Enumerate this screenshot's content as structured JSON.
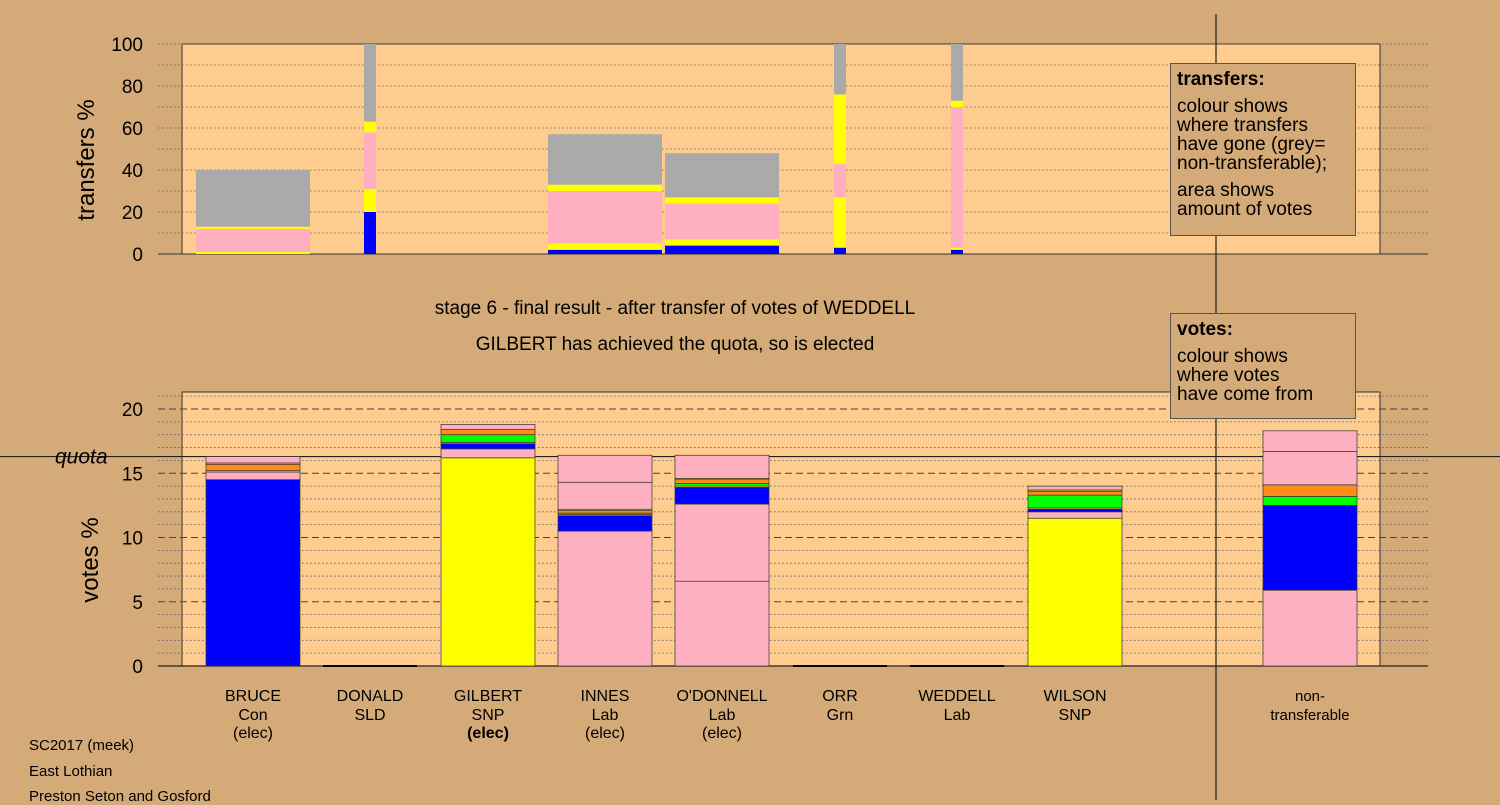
{
  "colors": {
    "background": "#d4aa78",
    "panel": "#ffcc90",
    "Con": "#0000ff",
    "SNP": "#ffff00",
    "Lab": "#ffb0c0",
    "SLD": "#ff8c1a",
    "Grn": "#00ff00",
    "nontransferable": "#aaaaaa"
  },
  "titles": {
    "stage": "stage 6 - final result - after transfer of votes of WEDDELL",
    "elected": "GILBERT has achieved the quota, so is elected"
  },
  "legend_transfers": {
    "heading": "transfers:",
    "lines1": [
      "colour shows",
      "where transfers",
      "have gone (grey=",
      "non-transferable);"
    ],
    "lines2": [
      "area shows",
      "amount of votes"
    ]
  },
  "legend_votes": {
    "heading": "votes:",
    "lines": [
      "colour shows",
      "where votes",
      "have come from"
    ]
  },
  "footer": [
    "SC2017 (meek)",
    "East Lothian",
    "Preston Seton and Gosford"
  ],
  "chart_data": [
    {
      "type": "bar",
      "name": "transfers",
      "ylabel": "transfers %",
      "ylim": [
        0,
        100
      ],
      "yticks": [
        0,
        20,
        40,
        60,
        80,
        100
      ],
      "categories": [
        "BRUCE",
        "DONALD",
        "GILBERT",
        "INNES",
        "O'DONNELL",
        "ORR",
        "WEDDELL",
        "WILSON"
      ],
      "bars": [
        {
          "candidate": "BRUCE",
          "width": "wide",
          "segments": [
            {
              "party": "SNP",
              "from": 0,
              "to": 1
            },
            {
              "party": "Lab",
              "from": 1,
              "to": 12
            },
            {
              "party": "SNP",
              "from": 12,
              "to": 13
            },
            {
              "party": "nontransferable",
              "from": 13,
              "to": 40
            }
          ]
        },
        {
          "candidate": "DONALD",
          "width": "narrow",
          "segments": [
            {
              "party": "Con",
              "from": 0,
              "to": 20
            },
            {
              "party": "SNP",
              "from": 20,
              "to": 31
            },
            {
              "party": "Lab",
              "from": 31,
              "to": 58
            },
            {
              "party": "SNP",
              "from": 58,
              "to": 63
            },
            {
              "party": "nontransferable",
              "from": 63,
              "to": 100
            }
          ]
        },
        {
          "candidate": "INNES",
          "width": "wide",
          "segments": [
            {
              "party": "Con",
              "from": 0,
              "to": 2
            },
            {
              "party": "SNP",
              "from": 2,
              "to": 5
            },
            {
              "party": "Lab",
              "from": 5,
              "to": 30
            },
            {
              "party": "SNP",
              "from": 30,
              "to": 33
            },
            {
              "party": "nontransferable",
              "from": 33,
              "to": 57
            }
          ]
        },
        {
          "candidate": "O'DONNELL",
          "width": "wide",
          "segments": [
            {
              "party": "Con",
              "from": 0,
              "to": 4
            },
            {
              "party": "SNP",
              "from": 4,
              "to": 7
            },
            {
              "party": "Lab",
              "from": 7,
              "to": 24
            },
            {
              "party": "SNP",
              "from": 24,
              "to": 27
            },
            {
              "party": "nontransferable",
              "from": 27,
              "to": 48
            }
          ]
        },
        {
          "candidate": "ORR",
          "width": "narrow",
          "segments": [
            {
              "party": "Con",
              "from": 0,
              "to": 3
            },
            {
              "party": "SNP",
              "from": 3,
              "to": 27
            },
            {
              "party": "Lab",
              "from": 27,
              "to": 43
            },
            {
              "party": "SNP",
              "from": 43,
              "to": 76
            },
            {
              "party": "nontransferable",
              "from": 76,
              "to": 100
            }
          ]
        },
        {
          "candidate": "WEDDELL",
          "width": "narrow",
          "segments": [
            {
              "party": "Con",
              "from": 0,
              "to": 2
            },
            {
              "party": "SNP",
              "from": 2,
              "to": 3
            },
            {
              "party": "Lab",
              "from": 3,
              "to": 70
            },
            {
              "party": "SNP",
              "from": 70,
              "to": 73
            },
            {
              "party": "nontransferable",
              "from": 73,
              "to": 100
            }
          ]
        }
      ]
    },
    {
      "type": "bar",
      "name": "votes",
      "ylabel": "votes %",
      "ylim": [
        0,
        21
      ],
      "yticks": [
        0,
        5,
        10,
        15,
        20
      ],
      "quota": 16.3,
      "quota_label": "quota",
      "categories": [
        "BRUCE",
        "DONALD",
        "GILBERT",
        "INNES",
        "O'DONNELL",
        "ORR",
        "WEDDELL",
        "WILSON",
        "non-transferable"
      ],
      "labels": [
        {
          "name": "BRUCE",
          "party": "Con",
          "status": "(elec)",
          "bold": false
        },
        {
          "name": "DONALD",
          "party": "SLD",
          "status": "",
          "bold": false
        },
        {
          "name": "GILBERT",
          "party": "SNP",
          "status": "(elec)",
          "bold": true
        },
        {
          "name": "INNES",
          "party": "Lab",
          "status": "(elec)",
          "bold": false
        },
        {
          "name": "O'DONNELL",
          "party": "Lab",
          "status": "(elec)",
          "bold": false
        },
        {
          "name": "ORR",
          "party": "Grn",
          "status": "",
          "bold": false
        },
        {
          "name": "WEDDELL",
          "party": "Lab",
          "status": "",
          "bold": false
        },
        {
          "name": "WILSON",
          "party": "SNP",
          "status": "",
          "bold": false
        },
        {
          "name": "non-",
          "party": "transferable",
          "status": "",
          "bold": false
        }
      ],
      "bars": [
        {
          "candidate": "BRUCE",
          "segments": [
            {
              "party": "Con",
              "from": 0,
              "to": 14.5
            },
            {
              "party": "Lab",
              "from": 14.5,
              "to": 15.1
            },
            {
              "party": "SNP",
              "from": 15.1,
              "to": 15.2
            },
            {
              "party": "SLD",
              "from": 15.2,
              "to": 15.7
            },
            {
              "party": "SNP",
              "from": 15.7,
              "to": 15.8
            },
            {
              "party": "Lab",
              "from": 15.8,
              "to": 16.3
            }
          ]
        },
        {
          "candidate": "GILBERT",
          "segments": [
            {
              "party": "SNP",
              "from": 0,
              "to": 16.2
            },
            {
              "party": "Lab",
              "from": 16.2,
              "to": 16.9
            },
            {
              "party": "Con",
              "from": 16.9,
              "to": 17.3
            },
            {
              "party": "SNP",
              "from": 17.3,
              "to": 17.4
            },
            {
              "party": "Grn",
              "from": 17.4,
              "to": 18.0
            },
            {
              "party": "SLD",
              "from": 18.0,
              "to": 18.4
            },
            {
              "party": "Lab",
              "from": 18.4,
              "to": 18.8
            }
          ]
        },
        {
          "candidate": "INNES",
          "segments": [
            {
              "party": "Lab",
              "from": 0,
              "to": 10.5
            },
            {
              "party": "Con",
              "from": 10.5,
              "to": 11.7
            },
            {
              "party": "SNP",
              "from": 11.7,
              "to": 11.8
            },
            {
              "party": "Grn",
              "from": 11.8,
              "to": 11.9
            },
            {
              "party": "SLD",
              "from": 11.9,
              "to": 12.1
            },
            {
              "party": "SNP",
              "from": 12.1,
              "to": 12.2
            },
            {
              "party": "Lab",
              "from": 12.2,
              "to": 14.3
            },
            {
              "party": "Lab",
              "from": 14.3,
              "to": 16.4
            }
          ]
        },
        {
          "candidate": "O'DONNELL",
          "segments": [
            {
              "party": "Lab",
              "from": 0,
              "to": 6.6
            },
            {
              "party": "Lab",
              "from": 6.6,
              "to": 12.6
            },
            {
              "party": "Con",
              "from": 12.6,
              "to": 13.9
            },
            {
              "party": "SNP",
              "from": 13.9,
              "to": 14.0
            },
            {
              "party": "Grn",
              "from": 14.0,
              "to": 14.2
            },
            {
              "party": "SLD",
              "from": 14.2,
              "to": 14.5
            },
            {
              "party": "SNP",
              "from": 14.5,
              "to": 14.6
            },
            {
              "party": "Lab",
              "from": 14.6,
              "to": 16.4
            }
          ]
        },
        {
          "candidate": "WILSON",
          "segments": [
            {
              "party": "SNP",
              "from": 0,
              "to": 11.5
            },
            {
              "party": "Lab",
              "from": 11.5,
              "to": 12.0
            },
            {
              "party": "Con",
              "from": 12.0,
              "to": 12.2
            },
            {
              "party": "SNP",
              "from": 12.2,
              "to": 12.3
            },
            {
              "party": "Grn",
              "from": 12.3,
              "to": 13.3
            },
            {
              "party": "SLD",
              "from": 13.3,
              "to": 13.6
            },
            {
              "party": "SNP",
              "from": 13.6,
              "to": 13.7
            },
            {
              "party": "Lab",
              "from": 13.7,
              "to": 14.0
            }
          ]
        },
        {
          "candidate": "non-transferable",
          "segments": [
            {
              "party": "Lab",
              "from": 0,
              "to": 5.9
            },
            {
              "party": "Con",
              "from": 5.9,
              "to": 12.5
            },
            {
              "party": "Grn",
              "from": 12.5,
              "to": 13.2
            },
            {
              "party": "SLD",
              "from": 13.2,
              "to": 14.1
            },
            {
              "party": "Lab",
              "from": 14.1,
              "to": 16.7
            },
            {
              "party": "Lab",
              "from": 16.7,
              "to": 18.3
            }
          ]
        }
      ]
    }
  ]
}
